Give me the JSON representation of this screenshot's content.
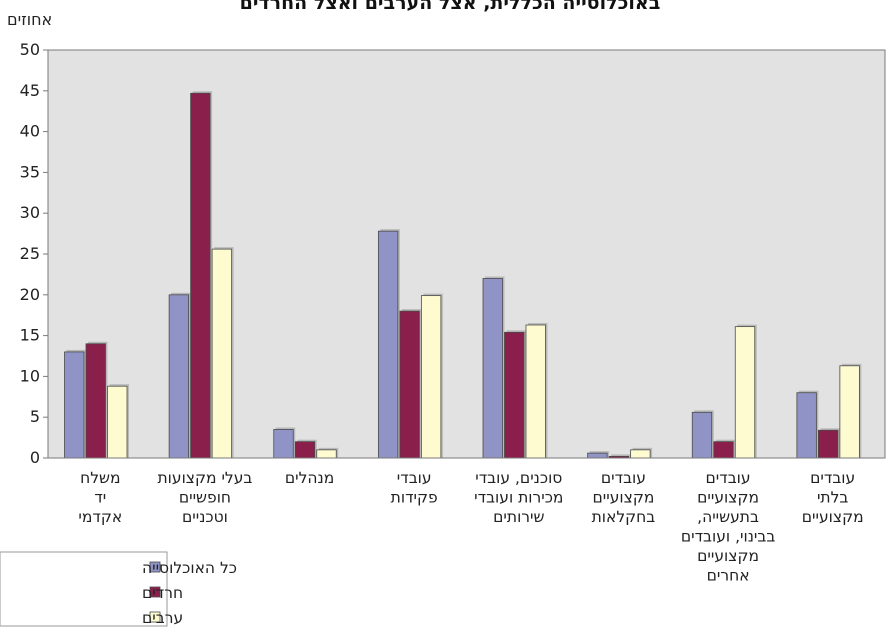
{
  "chart_data": {
    "type": "bar",
    "title": "באוכלוסייה הכללית, אצל הערבים ואצל החרדים",
    "ylabel": "אחוזים",
    "xlabel": "",
    "ylim": [
      0,
      50
    ],
    "yticks": [
      0,
      5,
      10,
      15,
      20,
      25,
      30,
      35,
      40,
      45,
      50
    ],
    "grid": false,
    "legend_position": "bottom-left",
    "categories": [
      [
        "משלח",
        "יד",
        "אקדמי"
      ],
      [
        "בעלי מקצועות",
        "חופשיים",
        "וטכניים"
      ],
      [
        "מנהלים"
      ],
      [
        "עובדי",
        "פקידות"
      ],
      [
        "סוכנים, עובדי",
        "מכירות ועובדי",
        "שירותים"
      ],
      [
        "עובדים",
        "מקצועיים",
        "בחקלאות"
      ],
      [
        "עובדים",
        "מקצועיים",
        "בתעשייה,",
        "בבינוי, ועובדים",
        "מקצועיים",
        "אחרים"
      ],
      [
        "עובדים",
        "בלתי",
        "מקצועיים"
      ]
    ],
    "series": [
      {
        "name": "כל האוכלוסייה",
        "color": "#8f93c6",
        "values": [
          13,
          20,
          3.5,
          27.8,
          22,
          0.6,
          5.6,
          8
        ]
      },
      {
        "name": "חרדים",
        "color": "#8b1f4c",
        "values": [
          14,
          44.7,
          2,
          18,
          15.4,
          0.2,
          2,
          3.4
        ]
      },
      {
        "name": "ערבים",
        "color": "#fdfbcf",
        "values": [
          8.8,
          25.6,
          1,
          19.9,
          16.3,
          1,
          16.1,
          11.3
        ]
      }
    ],
    "colors": {
      "plot_background": "#e2e2e2",
      "plot_border": "#7a7a7a",
      "bar_outline": "#4a4a4a"
    }
  }
}
